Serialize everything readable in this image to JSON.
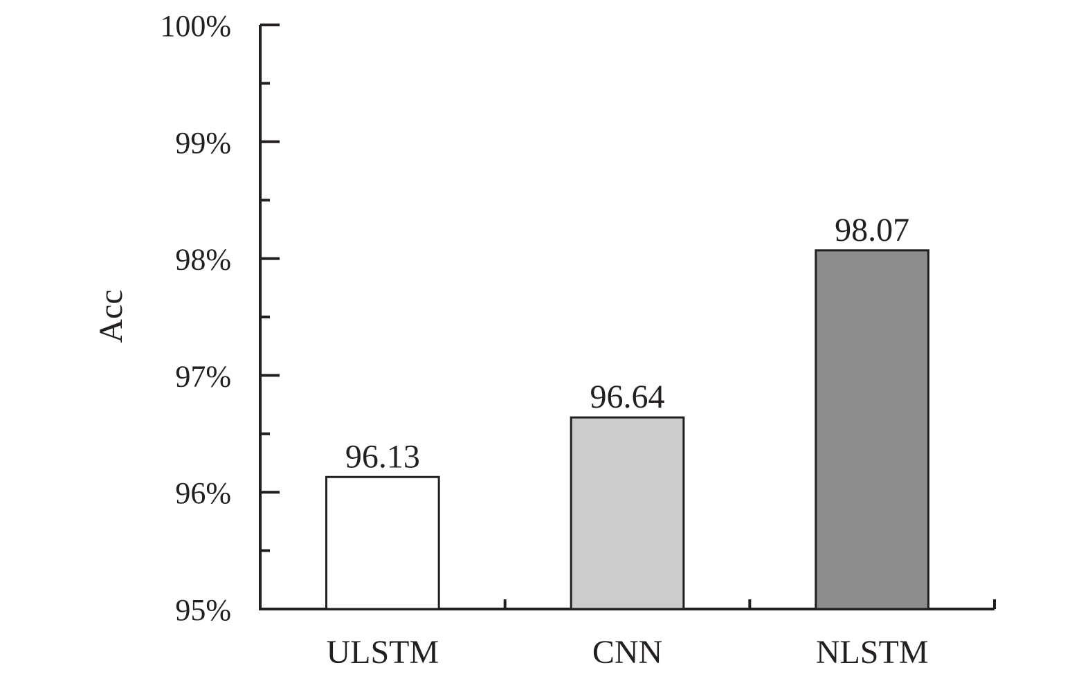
{
  "chart_data": {
    "type": "bar",
    "title": "",
    "xlabel": "",
    "ylabel": "Acc",
    "categories": [
      "ULSTM",
      "CNN",
      "NLSTM"
    ],
    "values": [
      96.13,
      96.64,
      98.07
    ],
    "data_labels": [
      "96.13",
      "96.64",
      "98.07"
    ],
    "bar_colors": [
      "#ffffff",
      "#cccccc",
      "#8e8d8d"
    ],
    "ylim": [
      95,
      100
    ],
    "yticks": [
      95,
      96,
      97,
      98,
      99,
      100
    ],
    "ytick_labels": [
      "95%",
      "96%",
      "97%",
      "98%",
      "99%",
      "100%"
    ],
    "grid": false,
    "legend": "none",
    "axis_color": "#231f20"
  }
}
